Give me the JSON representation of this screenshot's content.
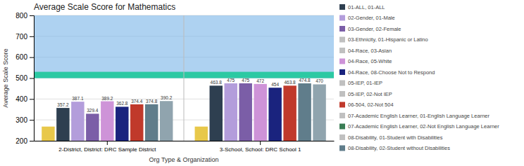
{
  "chart_data": {
    "type": "bar",
    "title": "Average Scale Score for Mathematics",
    "x_label": "Org Type & Organization",
    "y_label": "Average Scale Score",
    "categories": [
      "2-District, District: DRC Sample District",
      "3-School, School: DRC School 1"
    ],
    "series": [
      {
        "color": "#e8c84a",
        "values": [
          268,
          268
        ],
        "data_labels": false
      },
      {
        "color": "#2e3f50",
        "values": [
          357.2,
          463.8
        ],
        "data_labels": true
      },
      {
        "color": "#b39ddb",
        "values": [
          387.1,
          475
        ],
        "data_labels": true
      },
      {
        "color": "#7b5ea7",
        "values": [
          329.4,
          475
        ],
        "data_labels": true
      },
      {
        "color": "#ce93d8",
        "values": [
          389.2,
          472
        ],
        "data_labels": true
      },
      {
        "color": "#1a237e",
        "values": [
          362.8,
          454
        ],
        "data_labels": true
      },
      {
        "color": "#c0392b",
        "values": [
          374.4,
          463.8
        ],
        "data_labels": true
      },
      {
        "color": "#607d8b",
        "values": [
          374.8,
          474.8
        ],
        "data_labels": true
      },
      {
        "color": "#90a4ae",
        "values": [
          390.2,
          470
        ],
        "data_labels": true
      }
    ],
    "bands": [
      {
        "from": 500,
        "to": 800,
        "color": "#78b4e8"
      },
      {
        "from": 500,
        "to": 530,
        "color": "#1ec89a"
      }
    ],
    "legend_entries": [
      {
        "name": "01-ALL, 01-ALL",
        "color": "#2e3f50"
      },
      {
        "name": "02-Gender, 01-Male",
        "color": "#b39ddb"
      },
      {
        "name": "03-Gender, 02-Female",
        "color": "#7b5ea7"
      },
      {
        "name": "03-Ethnicity, 01-Hispanic or Latino",
        "color": "#c0c0c0"
      },
      {
        "name": "04-Race, 03-Asian",
        "color": "#c0c0c0"
      },
      {
        "name": "04-Race, 05-White",
        "color": "#ce93d8"
      },
      {
        "name": "04-Race, 08-Choose Not to Respond",
        "color": "#1a237e"
      },
      {
        "name": "05-IEP, 01-IEP",
        "color": "#c0c0c0"
      },
      {
        "name": "05-IEP, 02-Not IEP",
        "color": "#c0c0c0"
      },
      {
        "name": "06-504, 02-Not 504",
        "color": "#c0392b"
      },
      {
        "name": "07-Academic English Learner, 01-English Language Learner",
        "color": "#c0c0c0"
      },
      {
        "name": "07-Academic English Learner, 02-Not English Language Learner",
        "color": "#3a7d54"
      },
      {
        "name": "08-Disability, 01-Student with Disabilities",
        "color": "#c0c0c0"
      },
      {
        "name": "08-Disability, 02-Student without Disabilities",
        "color": "#607d8b"
      }
    ],
    "ylim": [
      200,
      800
    ],
    "yticks": [
      200,
      300,
      400,
      500,
      600,
      700,
      800
    ],
    "grid": true
  }
}
